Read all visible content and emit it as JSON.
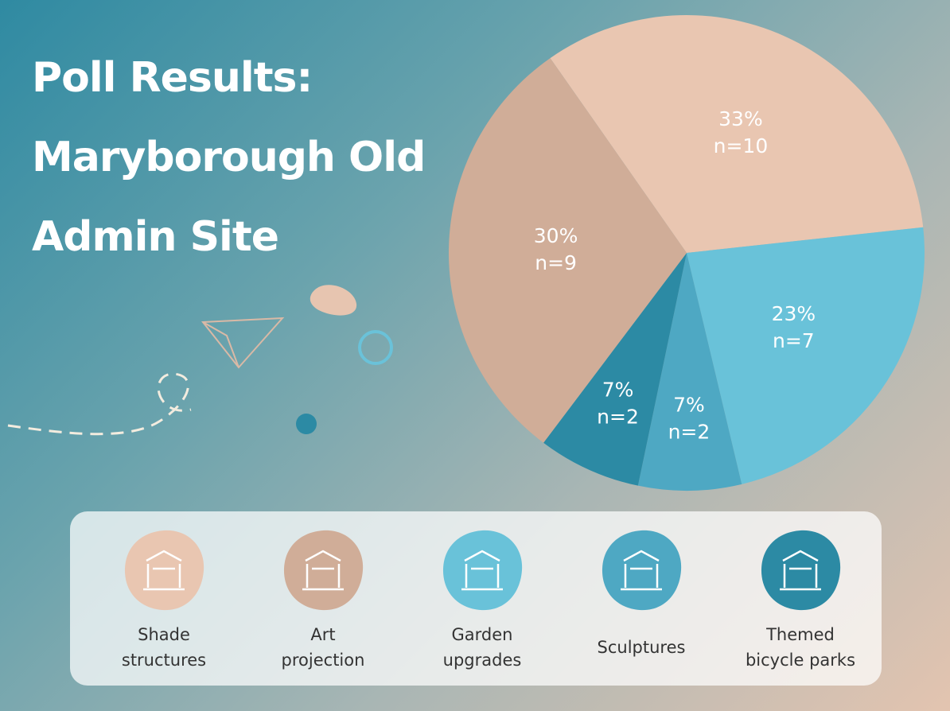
{
  "chart_data": {
    "type": "pie",
    "title": "Poll Results: Maryborough Old Admin Site",
    "categories": [
      "Shade\nstructures",
      "Art\nprojection",
      "Garden\nupgrades",
      "Sculptures",
      "Themed\nbicycle parks"
    ],
    "values": [
      33,
      30,
      23,
      7,
      7
    ],
    "value_labels": [
      "33%",
      "30%",
      "23%",
      "7%",
      "7%"
    ],
    "counts": [
      10,
      9,
      7,
      2,
      2
    ],
    "count_labels": [
      "n=10",
      "n=9",
      "n=7",
      "n=2",
      "n=2"
    ],
    "colors": [
      "#e9c6b1",
      "#d0ad98",
      "#69c2d9",
      "#4ea8c3",
      "#2c8aa4"
    ],
    "legend": "bottom"
  }
}
